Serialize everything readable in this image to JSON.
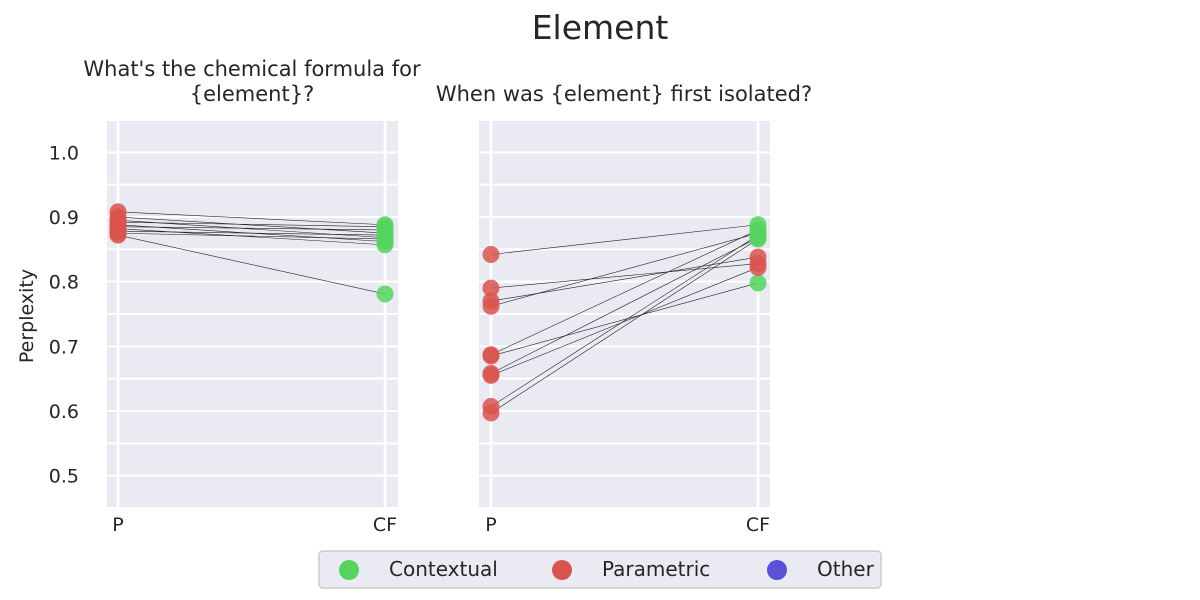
{
  "suptitle": "Element",
  "ylabel": "Perplexity",
  "legend": {
    "items": [
      {
        "label": "Contextual",
        "color": "#55d35f"
      },
      {
        "label": "Parametric",
        "color": "#d9544f"
      },
      {
        "label": "Other",
        "color": "#5b50d6"
      }
    ]
  },
  "chart_data": [
    {
      "type": "scatter",
      "title_lines": [
        "What's the chemical formula for",
        "{element}?"
      ],
      "categories": [
        "P",
        "CF"
      ],
      "ylim": [
        0.45,
        1.05
      ],
      "yticks": [
        "0.5",
        "0.6",
        "0.7",
        "0.8",
        "0.9",
        "1.0"
      ],
      "grid": true,
      "pairs": [
        {
          "p": 0.908,
          "cf": 0.888,
          "cf_type": "Contextual"
        },
        {
          "p": 0.9,
          "cf": 0.875,
          "cf_type": "Contextual"
        },
        {
          "p": 0.895,
          "cf": 0.868,
          "cf_type": "Contextual"
        },
        {
          "p": 0.892,
          "cf": 0.885,
          "cf_type": "Contextual"
        },
        {
          "p": 0.888,
          "cf": 0.862,
          "cf_type": "Contextual"
        },
        {
          "p": 0.885,
          "cf": 0.88,
          "cf_type": "Contextual"
        },
        {
          "p": 0.882,
          "cf": 0.857,
          "cf_type": "Contextual"
        },
        {
          "p": 0.878,
          "cf": 0.872,
          "cf_type": "Contextual"
        },
        {
          "p": 0.875,
          "cf": 0.866,
          "cf_type": "Contextual"
        },
        {
          "p": 0.872,
          "cf": 0.781,
          "cf_type": "Contextual"
        }
      ]
    },
    {
      "type": "scatter",
      "title_lines": [
        "When was {element} first isolated?"
      ],
      "categories": [
        "P",
        "CF"
      ],
      "ylim": [
        0.45,
        1.05
      ],
      "yticks": [],
      "grid": true,
      "pairs": [
        {
          "p": 0.842,
          "cf": 0.888,
          "cf_type": "Contextual"
        },
        {
          "p": 0.79,
          "cf": 0.828,
          "cf_type": "Parametric"
        },
        {
          "p": 0.77,
          "cf": 0.838,
          "cf_type": "Parametric"
        },
        {
          "p": 0.762,
          "cf": 0.875,
          "cf_type": "Contextual"
        },
        {
          "p": 0.687,
          "cf": 0.88,
          "cf_type": "Contextual"
        },
        {
          "p": 0.685,
          "cf": 0.798,
          "cf_type": "Contextual"
        },
        {
          "p": 0.658,
          "cf": 0.868,
          "cf_type": "Contextual"
        },
        {
          "p": 0.655,
          "cf": 0.822,
          "cf_type": "Parametric"
        },
        {
          "p": 0.607,
          "cf": 0.872,
          "cf_type": "Contextual"
        },
        {
          "p": 0.597,
          "cf": 0.866,
          "cf_type": "Contextual"
        }
      ]
    }
  ]
}
